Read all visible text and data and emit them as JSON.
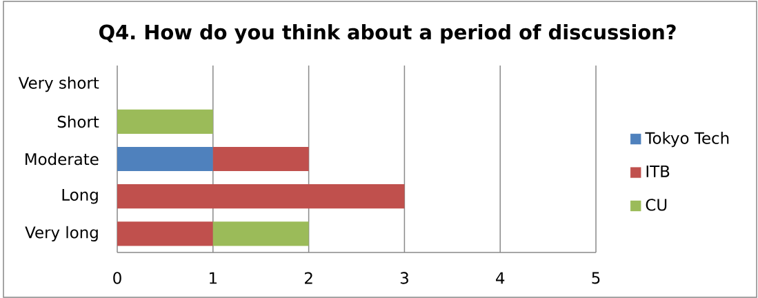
{
  "chart_data": {
    "type": "bar",
    "title": "Q4. How do you think about a period of discussion?",
    "orientation": "horizontal",
    "stacked": true,
    "categories": [
      "Very short",
      "Short",
      "Moderate",
      "Long",
      "Very long"
    ],
    "series": [
      {
        "name": "Tokyo Tech",
        "color": "#4f81bd",
        "values": [
          0,
          0,
          1,
          0,
          0
        ]
      },
      {
        "name": "ITB",
        "color": "#c0504d",
        "values": [
          0,
          0,
          1,
          3,
          1
        ]
      },
      {
        "name": "CU",
        "color": "#9bbb59",
        "values": [
          0,
          1,
          0,
          0,
          1
        ]
      }
    ],
    "xlim": [
      0,
      5
    ],
    "xticks": [
      0,
      1,
      2,
      3,
      4,
      5
    ],
    "grid": "x",
    "legend": "right"
  }
}
